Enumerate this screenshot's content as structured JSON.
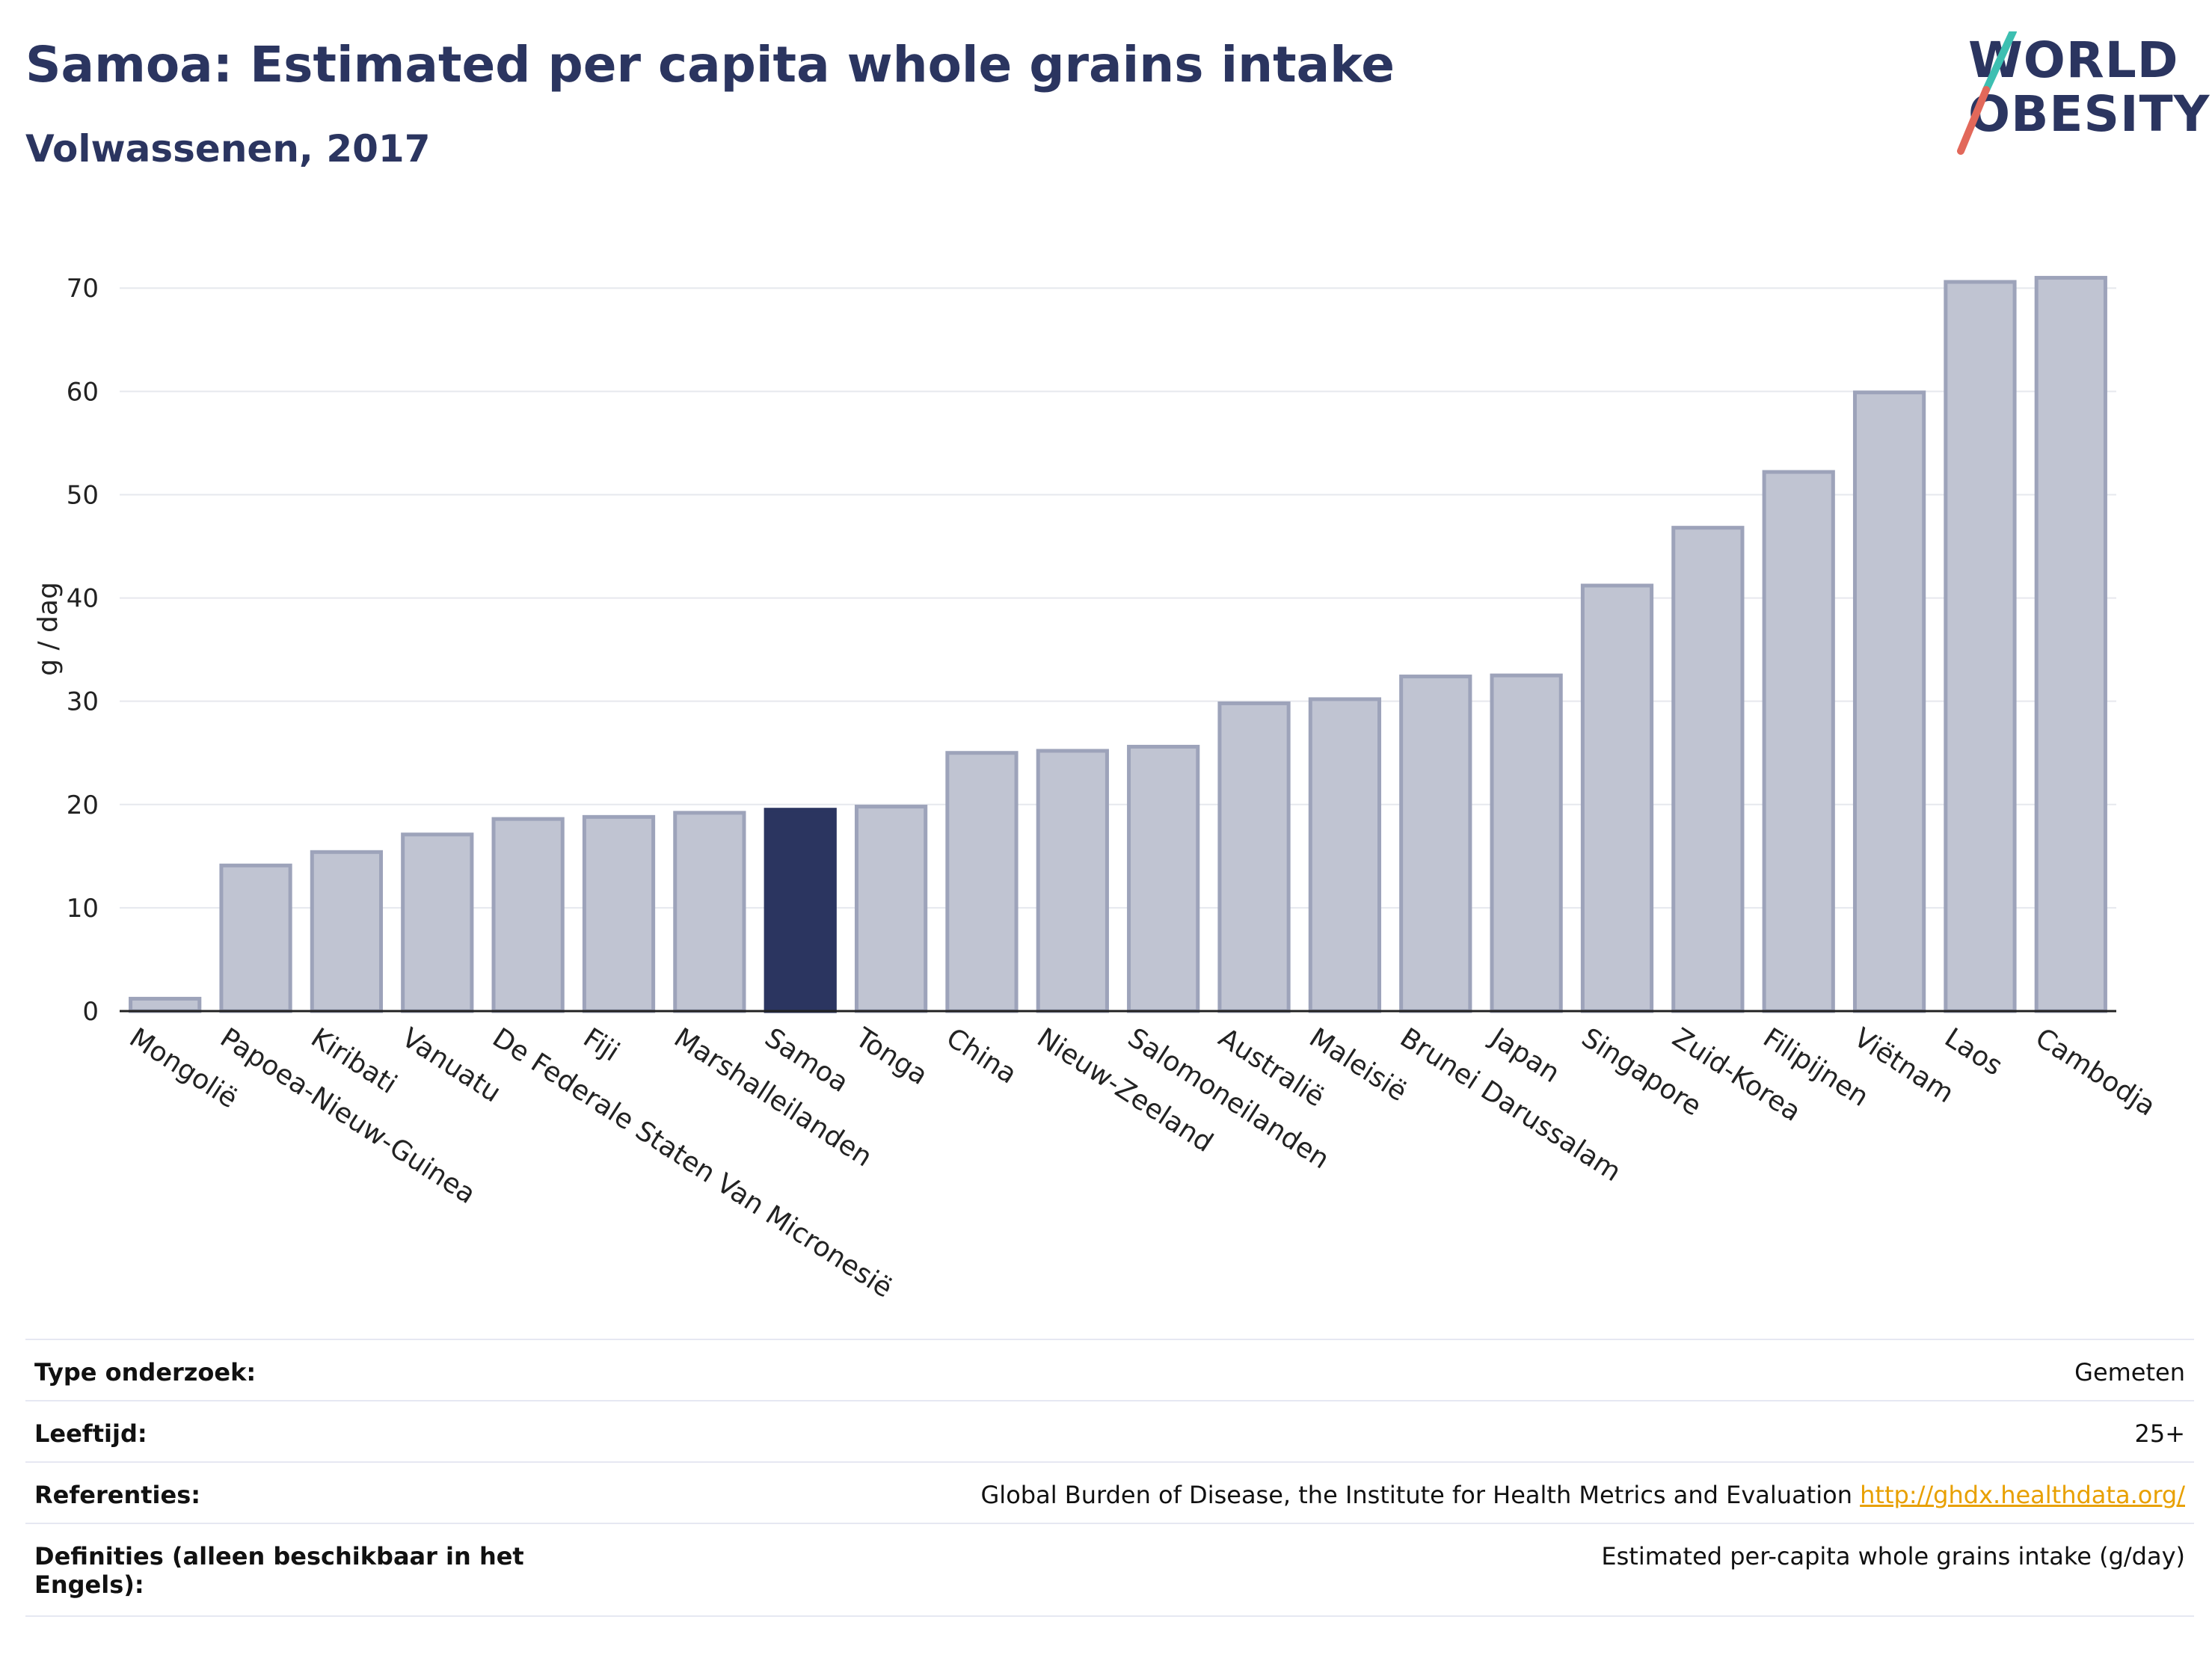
{
  "header": {
    "title": "Samoa: Estimated per capita whole grains intake",
    "subtitle": "Volwassenen, 2017"
  },
  "logo": {
    "line1": "WORLD",
    "line2": "OBESITY"
  },
  "colors": {
    "bar": "#c0c4d2",
    "bar_border": "#9da3ba",
    "highlight": "#2b3560",
    "grid": "#e6e8ee",
    "link": "#e8a000"
  },
  "chart_data": {
    "type": "bar",
    "categories": [
      "Mongolië",
      "Papoea-Nieuw-Guinea",
      "Kiribati",
      "Vanuatu",
      "De Federale Staten Van Micronesië",
      "Fiji",
      "Marshalleilanden",
      "Samoa",
      "Tonga",
      "China",
      "Nieuw-Zeeland",
      "Salomoneilanden",
      "Australië",
      "Maleisië",
      "Brunei Darussalam",
      "Japan",
      "Singapore",
      "Zuid-Korea",
      "Filipijnen",
      "Viëtnam",
      "Laos",
      "Cambodja"
    ],
    "values": [
      1.2,
      14.1,
      15.4,
      17.1,
      18.6,
      18.8,
      19.2,
      19.5,
      19.8,
      25.0,
      25.2,
      25.6,
      29.8,
      30.2,
      32.4,
      32.5,
      41.2,
      46.8,
      52.2,
      59.9,
      70.6,
      71.0
    ],
    "highlight": "Samoa",
    "ylabel": "g / dag",
    "yticks": [
      0,
      10,
      20,
      30,
      40,
      50,
      60,
      70
    ],
    "ylim": [
      0,
      74
    ],
    "grid": true
  },
  "info": [
    {
      "label": "Type onderzoek:",
      "value": "Gemeten"
    },
    {
      "label": "Leeftijd:",
      "value": "25+"
    },
    {
      "label": "Referenties:",
      "value": "Global Burden of Disease, the Institute for Health Metrics and Evaluation",
      "link": "http://ghdx.healthdata.org/"
    },
    {
      "label": "Definities (alleen beschikbaar in het Engels):",
      "value": "Estimated per-capita whole grains intake (g/day)"
    }
  ]
}
